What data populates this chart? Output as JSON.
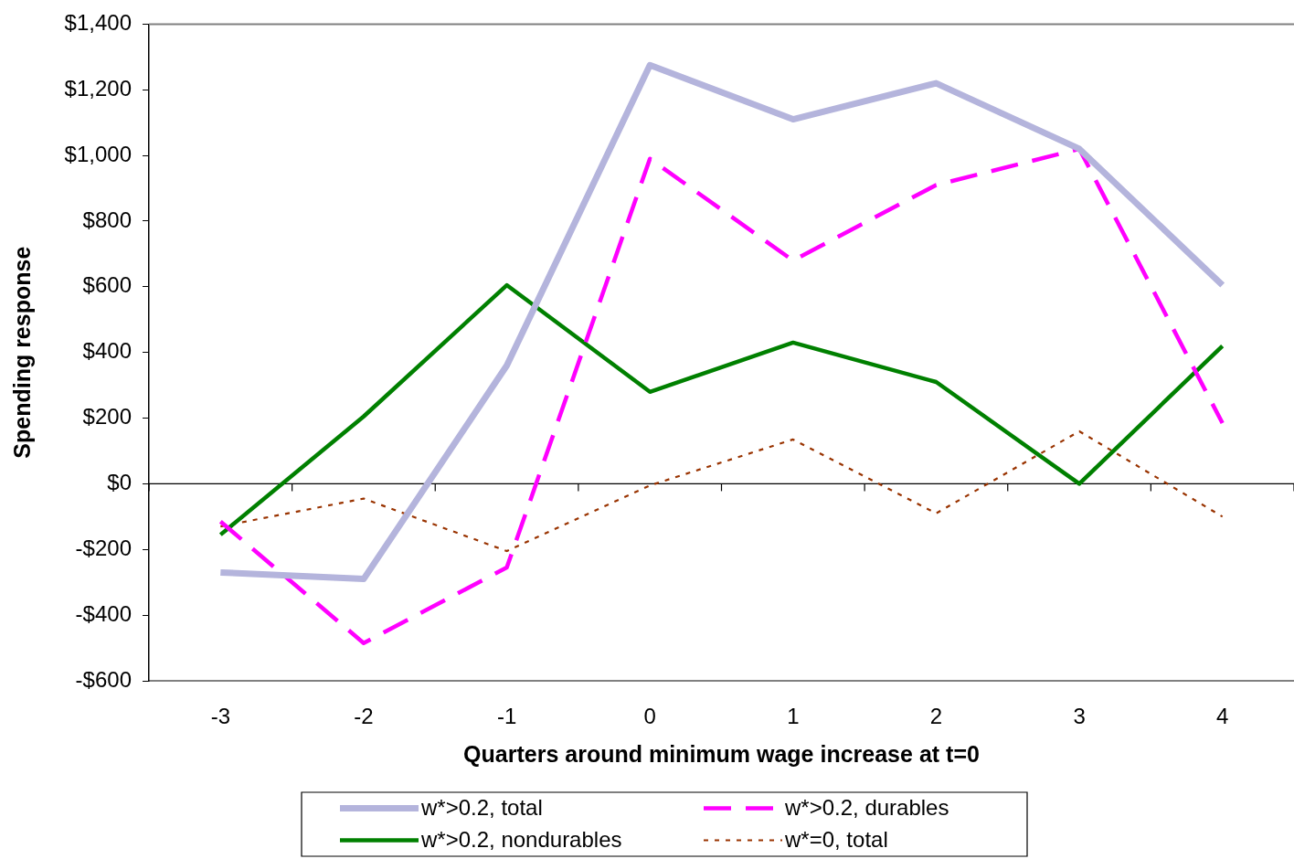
{
  "chart_data": {
    "type": "line",
    "xlabel": "Quarters around minimum wage increase at t=0",
    "ylabel": "Spending response",
    "categories": [
      "-3",
      "-2",
      "-1",
      "0",
      "1",
      "2",
      "3",
      "4"
    ],
    "series": [
      {
        "name": "w*>0.2, total",
        "color": "#b4b4dc",
        "line_style": "solid",
        "values": [
          -270,
          -290,
          360,
          1275,
          1110,
          1220,
          1020,
          605
        ]
      },
      {
        "name": "w*>0.2, durables",
        "color": "#ff00ff",
        "line_style": "dashed",
        "values": [
          -115,
          -485,
          -255,
          990,
          680,
          910,
          1020,
          185
        ]
      },
      {
        "name": "w*>0.2, nondurables",
        "color": "#008000",
        "line_style": "solid",
        "values": [
          -155,
          205,
          605,
          280,
          430,
          310,
          0,
          420
        ]
      },
      {
        "name": "w*=0, total",
        "color": "#993300",
        "line_style": "dotted",
        "values": [
          -130,
          -45,
          -205,
          -5,
          135,
          -90,
          160,
          -100
        ]
      }
    ],
    "ylim": [
      -600,
      1400
    ],
    "yticks": [
      {
        "value": -600,
        "label": "-$600"
      },
      {
        "value": -400,
        "label": "-$400"
      },
      {
        "value": -200,
        "label": "-$200"
      },
      {
        "value": 0,
        "label": "$0"
      },
      {
        "value": 200,
        "label": "$200"
      },
      {
        "value": 400,
        "label": "$400"
      },
      {
        "value": 600,
        "label": "$600"
      },
      {
        "value": 800,
        "label": "$800"
      },
      {
        "value": 1000,
        "label": "$1,000"
      },
      {
        "value": 1200,
        "label": "$1,200"
      },
      {
        "value": 1400,
        "label": "$1,400"
      }
    ],
    "legend": "bottom",
    "marker": "none"
  }
}
